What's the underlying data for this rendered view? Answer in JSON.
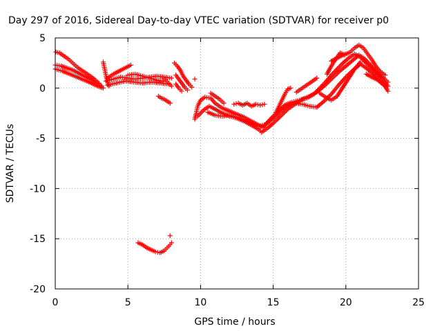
{
  "chart_data": {
    "type": "scatter",
    "title": "Day 297 of 2016, Sidereal Day-to-day VTEC variation (SDTVAR) for receiver p0",
    "xlabel": "GPS time / hours",
    "ylabel": "SDTVAR / TECUs",
    "xlim": [
      0,
      25
    ],
    "ylim": [
      -20,
      5
    ],
    "xticks": [
      "0",
      "5",
      "10",
      "15",
      "20",
      "25"
    ],
    "yticks": [
      "5",
      "0",
      "-5",
      "-10",
      "-15",
      "-20"
    ],
    "grid": true,
    "marker": "plus",
    "color": "#ff0000",
    "series": [
      {
        "points": [
          [
            0.05,
            3.6
          ],
          [
            0.3,
            3.5
          ],
          [
            0.6,
            3.2
          ],
          [
            0.9,
            2.9
          ],
          [
            1.2,
            2.5
          ],
          [
            1.5,
            2.1
          ],
          [
            1.8,
            1.8
          ],
          [
            2.1,
            1.5
          ],
          [
            2.4,
            1.2
          ],
          [
            2.7,
            0.9
          ],
          [
            3.0,
            0.5
          ]
        ]
      },
      {
        "points": [
          [
            0.0,
            2.3
          ],
          [
            0.4,
            2.2
          ],
          [
            0.8,
            2.0
          ],
          [
            1.2,
            1.8
          ],
          [
            1.6,
            1.5
          ],
          [
            2.0,
            1.2
          ],
          [
            2.4,
            0.9
          ],
          [
            2.8,
            0.6
          ],
          [
            3.2,
            0.2
          ]
        ]
      },
      {
        "points": [
          [
            0.0,
            1.9
          ],
          [
            0.5,
            1.7
          ],
          [
            1.0,
            1.4
          ],
          [
            1.5,
            1.1
          ],
          [
            2.0,
            0.8
          ],
          [
            2.5,
            0.5
          ],
          [
            2.9,
            0.2
          ],
          [
            3.3,
            0.0
          ]
        ]
      },
      {
        "points": [
          [
            3.3,
            2.6
          ],
          [
            3.4,
            1.9
          ],
          [
            3.5,
            1.2
          ],
          [
            3.6,
            0.6
          ],
          [
            3.7,
            0.2
          ]
        ]
      },
      {
        "points": [
          [
            3.6,
            1.0
          ],
          [
            4.0,
            1.4
          ],
          [
            4.4,
            1.7
          ],
          [
            4.8,
            2.0
          ],
          [
            5.2,
            2.3
          ]
        ]
      },
      {
        "points": [
          [
            3.5,
            0.7
          ],
          [
            4.0,
            0.9
          ],
          [
            4.5,
            1.1
          ],
          [
            5.0,
            1.0
          ],
          [
            5.5,
            0.9
          ],
          [
            6.0,
            1.0
          ],
          [
            6.5,
            1.1
          ],
          [
            7.0,
            1.2
          ],
          [
            7.5,
            1.1
          ],
          [
            8.0,
            1.0
          ]
        ]
      },
      {
        "points": [
          [
            3.6,
            0.3
          ],
          [
            4.2,
            0.5
          ],
          [
            4.8,
            0.7
          ],
          [
            5.4,
            0.6
          ],
          [
            6.0,
            0.5
          ],
          [
            6.6,
            0.6
          ],
          [
            7.2,
            0.5
          ],
          [
            7.8,
            0.4
          ]
        ]
      },
      {
        "points": [
          [
            5.0,
            1.3
          ],
          [
            5.5,
            1.4
          ],
          [
            6.0,
            1.2
          ],
          [
            6.5,
            1.0
          ],
          [
            7.0,
            0.8
          ],
          [
            7.4,
            0.7
          ]
        ]
      },
      {
        "points": [
          [
            7.4,
            1.1
          ],
          [
            7.6,
            0.8
          ],
          [
            7.8,
            0.5
          ],
          [
            8.0,
            0.2
          ]
        ]
      },
      {
        "points": [
          [
            7.1,
            -0.8
          ],
          [
            7.3,
            -1.0
          ],
          [
            7.5,
            -1.1
          ],
          [
            7.7,
            -1.3
          ],
          [
            7.9,
            -1.5
          ]
        ]
      },
      {
        "points": [
          [
            8.2,
            2.5
          ],
          [
            8.4,
            2.2
          ],
          [
            8.6,
            1.8
          ],
          [
            8.8,
            1.2
          ],
          [
            9.0,
            0.8
          ],
          [
            9.2,
            0.4
          ],
          [
            9.4,
            0.1
          ]
        ]
      },
      {
        "points": [
          [
            8.3,
            1.3
          ],
          [
            8.5,
            0.9
          ],
          [
            8.7,
            0.5
          ],
          [
            8.9,
            0.1
          ],
          [
            9.1,
            -0.2
          ]
        ]
      },
      {
        "points": [
          [
            8.3,
            0.4
          ],
          [
            8.5,
            0.0
          ],
          [
            8.7,
            -0.3
          ]
        ]
      },
      {
        "points": [
          [
            9.6,
            0.9
          ]
        ]
      },
      {
        "points": [
          [
            5.7,
            -15.4
          ],
          [
            6.0,
            -15.6
          ],
          [
            6.3,
            -15.9
          ],
          [
            6.6,
            -16.1
          ],
          [
            6.9,
            -16.3
          ],
          [
            7.2,
            -16.4
          ],
          [
            7.5,
            -16.2
          ],
          [
            7.7,
            -15.9
          ],
          [
            7.9,
            -15.6
          ],
          [
            8.0,
            -15.4
          ]
        ]
      },
      {
        "points": [
          [
            7.9,
            -14.7
          ]
        ]
      },
      {
        "points": [
          [
            9.6,
            -3.1
          ],
          [
            9.7,
            -2.5
          ],
          [
            9.8,
            -1.8
          ],
          [
            10.0,
            -1.2
          ],
          [
            10.3,
            -0.9
          ],
          [
            10.7,
            -1.0
          ],
          [
            11.0,
            -1.5
          ],
          [
            11.5,
            -2.0
          ],
          [
            12.0,
            -2.3
          ],
          [
            12.5,
            -2.6
          ],
          [
            13.0,
            -2.9
          ],
          [
            13.5,
            -3.3
          ],
          [
            14.0,
            -3.7
          ],
          [
            14.3,
            -3.9
          ],
          [
            14.6,
            -3.4
          ],
          [
            15.0,
            -2.8
          ],
          [
            15.4,
            -2.2
          ],
          [
            15.8,
            -1.7
          ],
          [
            16.3,
            -1.4
          ],
          [
            16.8,
            -1.2
          ],
          [
            17.3,
            -1.0
          ],
          [
            17.8,
            -0.6
          ],
          [
            18.2,
            0.0
          ],
          [
            18.6,
            0.6
          ],
          [
            19.0,
            1.3
          ],
          [
            19.4,
            1.9
          ],
          [
            19.8,
            2.5
          ],
          [
            20.2,
            3.0
          ],
          [
            20.6,
            3.4
          ],
          [
            21.0,
            3.1
          ],
          [
            21.4,
            2.5
          ],
          [
            21.8,
            1.9
          ],
          [
            22.2,
            1.4
          ],
          [
            22.6,
            1.0
          ],
          [
            22.9,
            0.6
          ]
        ]
      },
      {
        "points": [
          [
            9.8,
            -2.8
          ],
          [
            10.2,
            -2.2
          ],
          [
            10.6,
            -1.8
          ],
          [
            11.0,
            -2.1
          ],
          [
            11.5,
            -2.5
          ],
          [
            12.0,
            -2.8
          ],
          [
            12.5,
            -3.0
          ],
          [
            13.0,
            -3.3
          ],
          [
            13.5,
            -3.7
          ],
          [
            14.0,
            -4.1
          ],
          [
            14.2,
            -4.4
          ],
          [
            14.6,
            -4.0
          ],
          [
            15.0,
            -3.5
          ],
          [
            15.5,
            -2.8
          ],
          [
            16.0,
            -2.1
          ],
          [
            16.5,
            -1.6
          ],
          [
            17.0,
            -1.1
          ],
          [
            17.5,
            -0.8
          ],
          [
            18.0,
            -0.4
          ],
          [
            18.5,
            0.2
          ],
          [
            19.0,
            0.9
          ],
          [
            19.5,
            1.6
          ],
          [
            20.0,
            2.2
          ],
          [
            20.5,
            2.8
          ],
          [
            20.9,
            3.3
          ],
          [
            21.3,
            2.9
          ],
          [
            21.7,
            2.3
          ],
          [
            22.1,
            1.6
          ],
          [
            22.5,
            1.0
          ],
          [
            22.9,
            0.2
          ]
        ]
      },
      {
        "points": [
          [
            10.5,
            -2.4
          ],
          [
            11.0,
            -2.7
          ],
          [
            11.5,
            -2.8
          ],
          [
            12.0,
            -2.7
          ],
          [
            12.5,
            -2.9
          ],
          [
            13.0,
            -3.2
          ],
          [
            13.5,
            -3.5
          ],
          [
            14.0,
            -3.8
          ],
          [
            14.5,
            -3.6
          ],
          [
            15.0,
            -3.0
          ],
          [
            15.5,
            -2.3
          ],
          [
            16.0,
            -1.8
          ],
          [
            16.5,
            -1.5
          ],
          [
            17.0,
            -1.6
          ],
          [
            17.5,
            -1.8
          ],
          [
            18.0,
            -1.9
          ],
          [
            18.5,
            -1.3
          ],
          [
            19.0,
            -0.6
          ],
          [
            19.5,
            0.3
          ],
          [
            20.0,
            1.1
          ],
          [
            20.5,
            1.8
          ],
          [
            21.0,
            2.4
          ],
          [
            21.4,
            2.0
          ],
          [
            21.8,
            1.5
          ],
          [
            22.2,
            1.0
          ],
          [
            22.6,
            0.4
          ],
          [
            22.9,
            -0.3
          ]
        ]
      },
      {
        "points": [
          [
            12.3,
            -1.6
          ],
          [
            12.6,
            -1.5
          ],
          [
            12.9,
            -1.7
          ],
          [
            13.2,
            -1.5
          ],
          [
            13.5,
            -1.8
          ],
          [
            13.8,
            -1.6
          ],
          [
            14.1,
            -1.7
          ],
          [
            14.4,
            -1.6
          ]
        ]
      },
      {
        "points": [
          [
            10.7,
            -0.5
          ],
          [
            11.0,
            -0.8
          ],
          [
            11.3,
            -1.1
          ],
          [
            11.6,
            -1.5
          ]
        ]
      },
      {
        "points": [
          [
            15.2,
            -2.4
          ],
          [
            15.4,
            -1.8
          ],
          [
            15.6,
            -1.2
          ],
          [
            15.8,
            -0.6
          ],
          [
            16.0,
            -0.1
          ],
          [
            16.2,
            0.0
          ]
        ]
      },
      {
        "points": [
          [
            16.6,
            -0.4
          ],
          [
            17.0,
            0.0
          ],
          [
            17.4,
            0.4
          ],
          [
            17.8,
            0.8
          ],
          [
            18.0,
            1.0
          ]
        ]
      },
      {
        "points": [
          [
            18.2,
            -0.5
          ],
          [
            18.6,
            -0.9
          ],
          [
            19.0,
            -1.2
          ],
          [
            19.4,
            -0.8
          ],
          [
            19.8,
            0.1
          ],
          [
            20.2,
            1.0
          ],
          [
            20.6,
            1.9
          ],
          [
            21.0,
            2.6
          ]
        ]
      },
      {
        "points": [
          [
            18.7,
            1.4
          ],
          [
            19.0,
            2.2
          ],
          [
            19.3,
            2.9
          ],
          [
            19.6,
            3.5
          ],
          [
            19.9,
            3.3
          ]
        ]
      },
      {
        "points": [
          [
            20.3,
            3.6
          ],
          [
            20.6,
            4.0
          ],
          [
            20.9,
            4.3
          ],
          [
            21.2,
            4.0
          ],
          [
            21.5,
            3.4
          ],
          [
            21.8,
            2.8
          ],
          [
            22.1,
            2.1
          ],
          [
            22.4,
            1.6
          ],
          [
            22.7,
            1.3
          ]
        ]
      },
      {
        "points": [
          [
            19.0,
            2.7
          ],
          [
            19.4,
            3.0
          ],
          [
            19.8,
            3.3
          ],
          [
            20.2,
            3.5
          ]
        ]
      },
      {
        "points": [
          [
            21.4,
            1.4
          ],
          [
            21.8,
            1.1
          ],
          [
            22.2,
            0.8
          ],
          [
            22.6,
            0.3
          ]
        ]
      }
    ]
  }
}
